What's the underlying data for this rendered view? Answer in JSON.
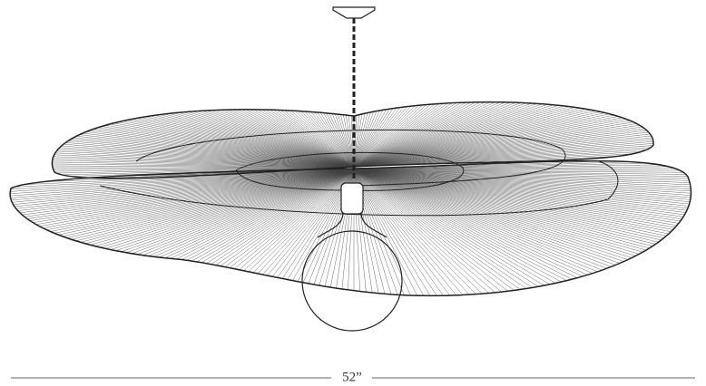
{
  "dimension": {
    "label": "52”"
  }
}
